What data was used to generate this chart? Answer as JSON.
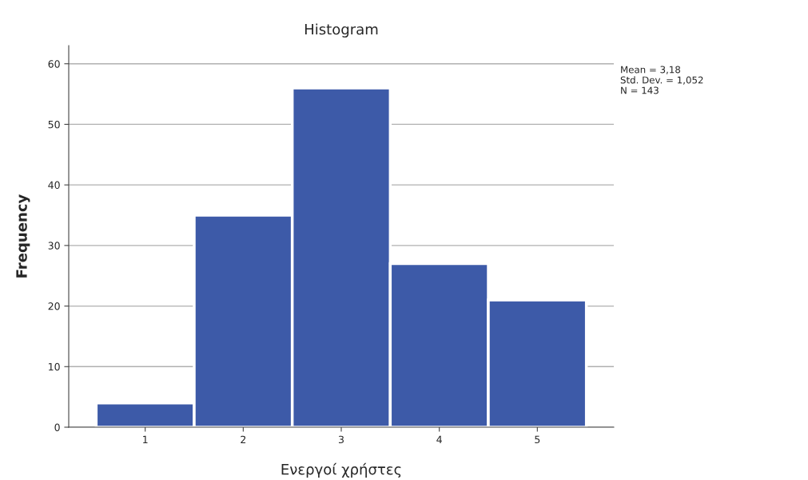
{
  "chart_data": {
    "type": "histogram",
    "title": "Histogram",
    "xlabel": "Ενεργοί χρήστες",
    "ylabel": "Frequency",
    "bins": [
      0.5,
      1.5,
      2.5,
      3.5,
      4.5,
      5.5
    ],
    "values": [
      4,
      35,
      56,
      27,
      21
    ],
    "color": "#3d5aa8",
    "xlim": [
      0.22,
      5.78
    ],
    "xticks": [
      1,
      2,
      3,
      4,
      5
    ],
    "ylim": [
      0,
      63
    ],
    "yticks": [
      0,
      10,
      20,
      30,
      40,
      50,
      60
    ],
    "grid": "y",
    "annotations": [
      "Mean = 3,18",
      "Std. Dev. = 1,052",
      "N = 143"
    ]
  }
}
